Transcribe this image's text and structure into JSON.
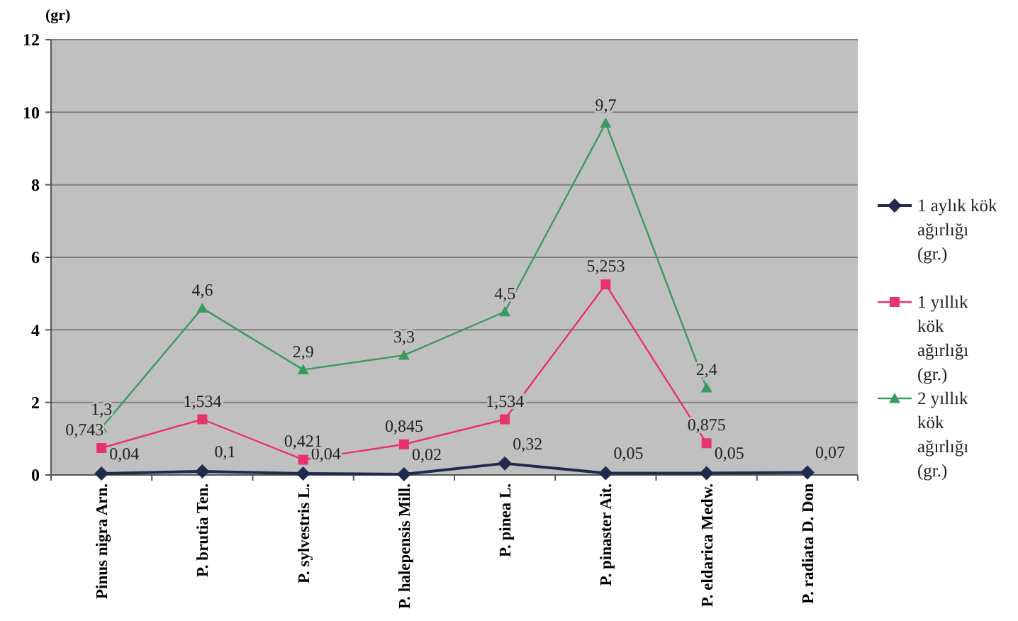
{
  "chart_data": {
    "type": "line",
    "ylabel": "(gr)",
    "categories": [
      "Pinus nigra Arn.",
      "P. brutia Ten.",
      "P. sylvestris L.",
      "P. halepensis Mill.",
      "P. pinea L.",
      "P. pinaster Ait.",
      "P. eldarica Medw.",
      "P. radiata D. Don"
    ],
    "series": [
      {
        "name": "1 aylık kök ağırlığı (gr.)",
        "color": "#1f2a4d",
        "marker": "diamond",
        "values": [
          0.04,
          0.1,
          0.04,
          0.02,
          0.32,
          0.05,
          0.05,
          0.07
        ],
        "value_labels": [
          "0,04",
          "0,1",
          "0,04",
          "0,02",
          "0,32",
          "0,05",
          "0,05",
          "0,07"
        ]
      },
      {
        "name": "1 yıllık kök ağırlığı (gr.)",
        "color": "#e8336b",
        "marker": "square",
        "values": [
          0.743,
          1.534,
          0.421,
          0.845,
          1.534,
          5.253,
          0.875,
          null
        ],
        "value_labels": [
          "0,743",
          "1,534",
          "0,421",
          "0,845",
          "1,534",
          "5,253",
          "0,875",
          null
        ]
      },
      {
        "name": "2 yıllık kök ağırlığı (gr.)",
        "color": "#3a9a5c",
        "marker": "triangle",
        "values": [
          1.3,
          4.6,
          2.9,
          3.3,
          4.5,
          9.7,
          2.4,
          null
        ],
        "value_labels": [
          "1,3",
          "4,6",
          "2,9",
          "3,3",
          "4,5",
          "9,7",
          "2,4",
          null
        ]
      }
    ],
    "ylim": [
      0,
      12
    ],
    "yticks": [
      0,
      2,
      4,
      6,
      8,
      10,
      12
    ],
    "grid": "y",
    "legend": "right"
  }
}
